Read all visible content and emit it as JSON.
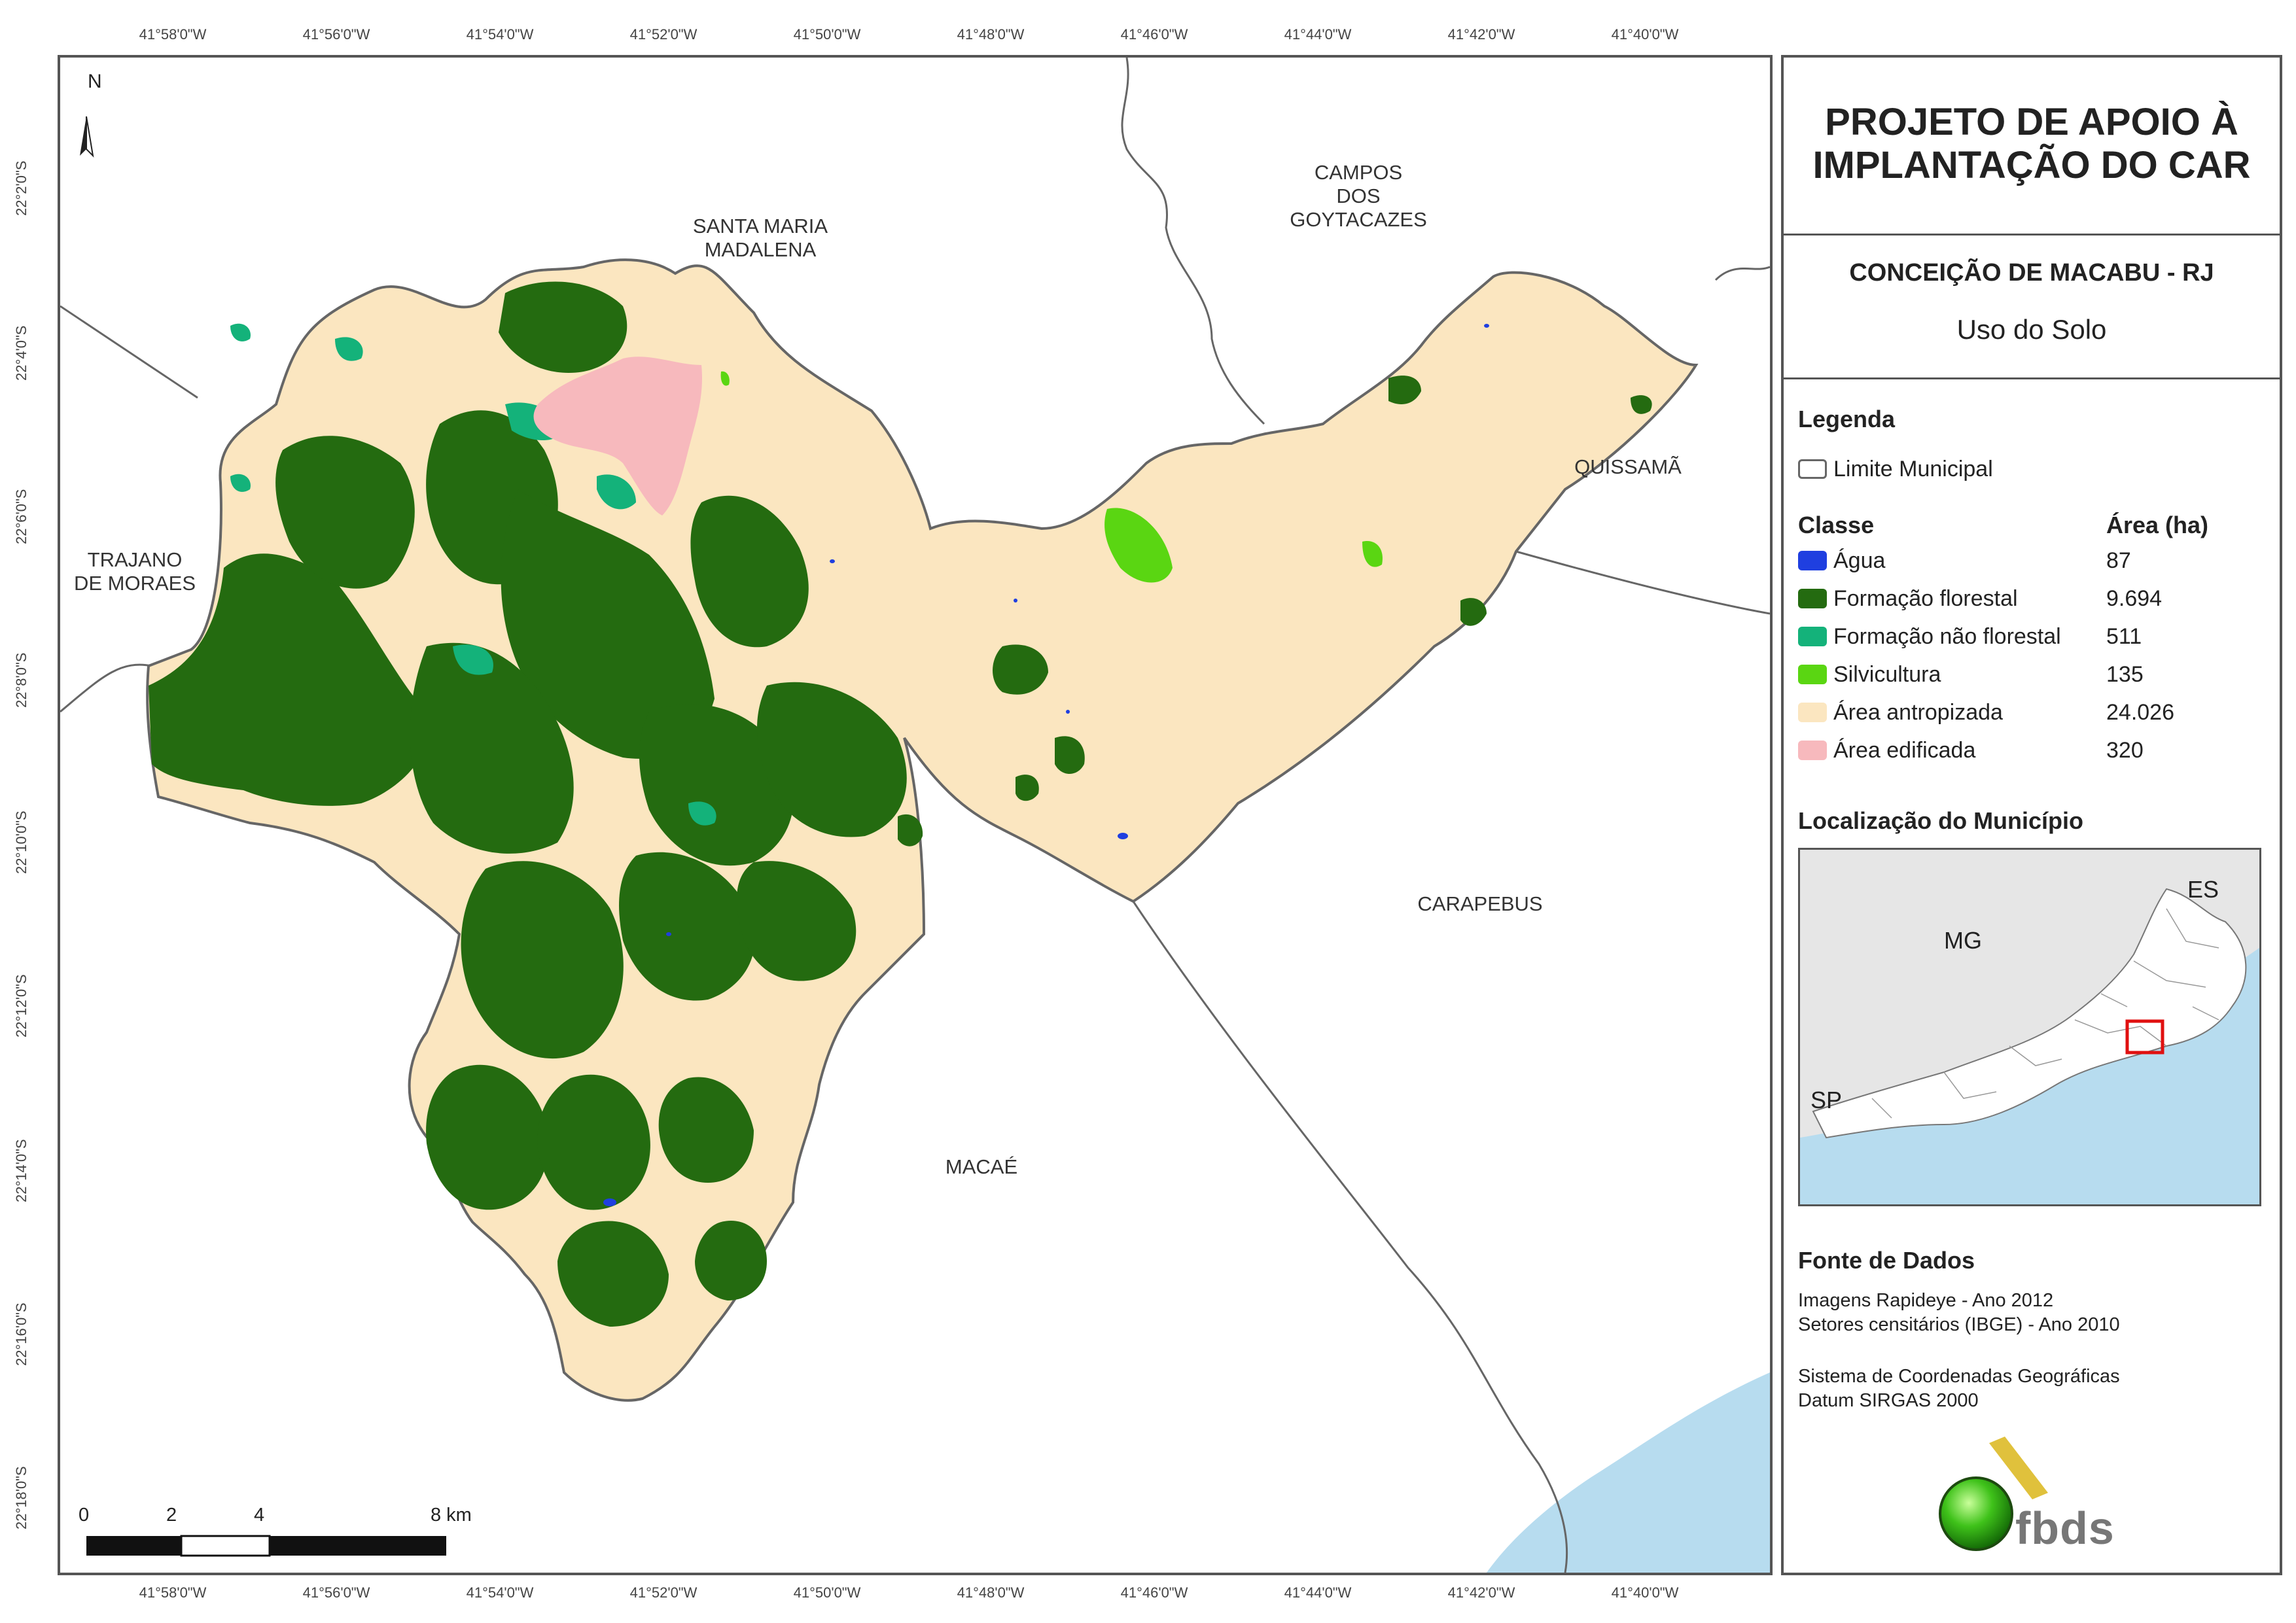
{
  "map": {
    "top_longitudes": [
      "41°58'0\"W",
      "41°56'0\"W",
      "41°54'0\"W",
      "41°52'0\"W",
      "41°50'0\"W",
      "41°48'0\"W",
      "41°46'0\"W",
      "41°44'0\"W",
      "41°42'0\"W",
      "41°40'0\"W"
    ],
    "bottom_longitudes": [
      "41°58'0\"W",
      "41°56'0\"W",
      "41°54'0\"W",
      "41°52'0\"W",
      "41°50'0\"W",
      "41°48'0\"W",
      "41°46'0\"W",
      "41°44'0\"W",
      "41°42'0\"W",
      "41°40'0\"W"
    ],
    "latitudes": [
      "22°2'0\"S",
      "22°4'0\"S",
      "22°6'0\"S",
      "22°8'0\"S",
      "22°10'0\"S",
      "22°12'0\"S",
      "22°14'0\"S",
      "22°16'0\"S",
      "22°18'0\"S"
    ],
    "north_label": "N",
    "places": {
      "santa_maria": "SANTA MARIA\nMADALENA",
      "campos": "CAMPOS\nDOS\nGOYTACAZES",
      "quissama": "QUISSAMÃ",
      "trajano": "TRAJANO\nDE MORAES",
      "carapebus": "CARAPEBUS",
      "macae": "MACAÉ"
    },
    "scale_labels": [
      "0",
      "2",
      "4",
      "8 km"
    ]
  },
  "panel": {
    "title": "PROJETO DE APOIO À\nIMPLANTAÇÃO DO CAR",
    "municipality": "CONCEIÇÃO DE MACABU - RJ",
    "subtitle": "Uso do Solo",
    "legend_title": "Legenda",
    "boundary_label": "Limite Municipal",
    "class_header": "Classe",
    "area_header": "Área (ha)",
    "classes": [
      {
        "name": "Água",
        "area": "87",
        "color": "#1f3fe0"
      },
      {
        "name": "Formação florestal",
        "area": "9.694",
        "color": "#246b10"
      },
      {
        "name": "Formação não florestal",
        "area": "511",
        "color": "#14b27a"
      },
      {
        "name": "Silvicultura",
        "area": "135",
        "color": "#5ad612"
      },
      {
        "name": "Área antropizada",
        "area": "24.026",
        "color": "#fbe6c0"
      },
      {
        "name": "Área edificada",
        "area": "320",
        "color": "#f7b9bd"
      }
    ],
    "location_title": "Localização do Município",
    "inset_labels": {
      "es": "ES",
      "mg": "MG",
      "sp": "SP"
    },
    "sources_title": "Fonte de Dados",
    "sources": [
      "Imagens Rapideye - Ano 2012",
      "Setores censitários (IBGE) - Ano 2010"
    ],
    "crs": [
      "Sistema de Coordenadas Geográficas",
      "Datum SIRGAS 2000"
    ],
    "logo_text": "fbds"
  }
}
